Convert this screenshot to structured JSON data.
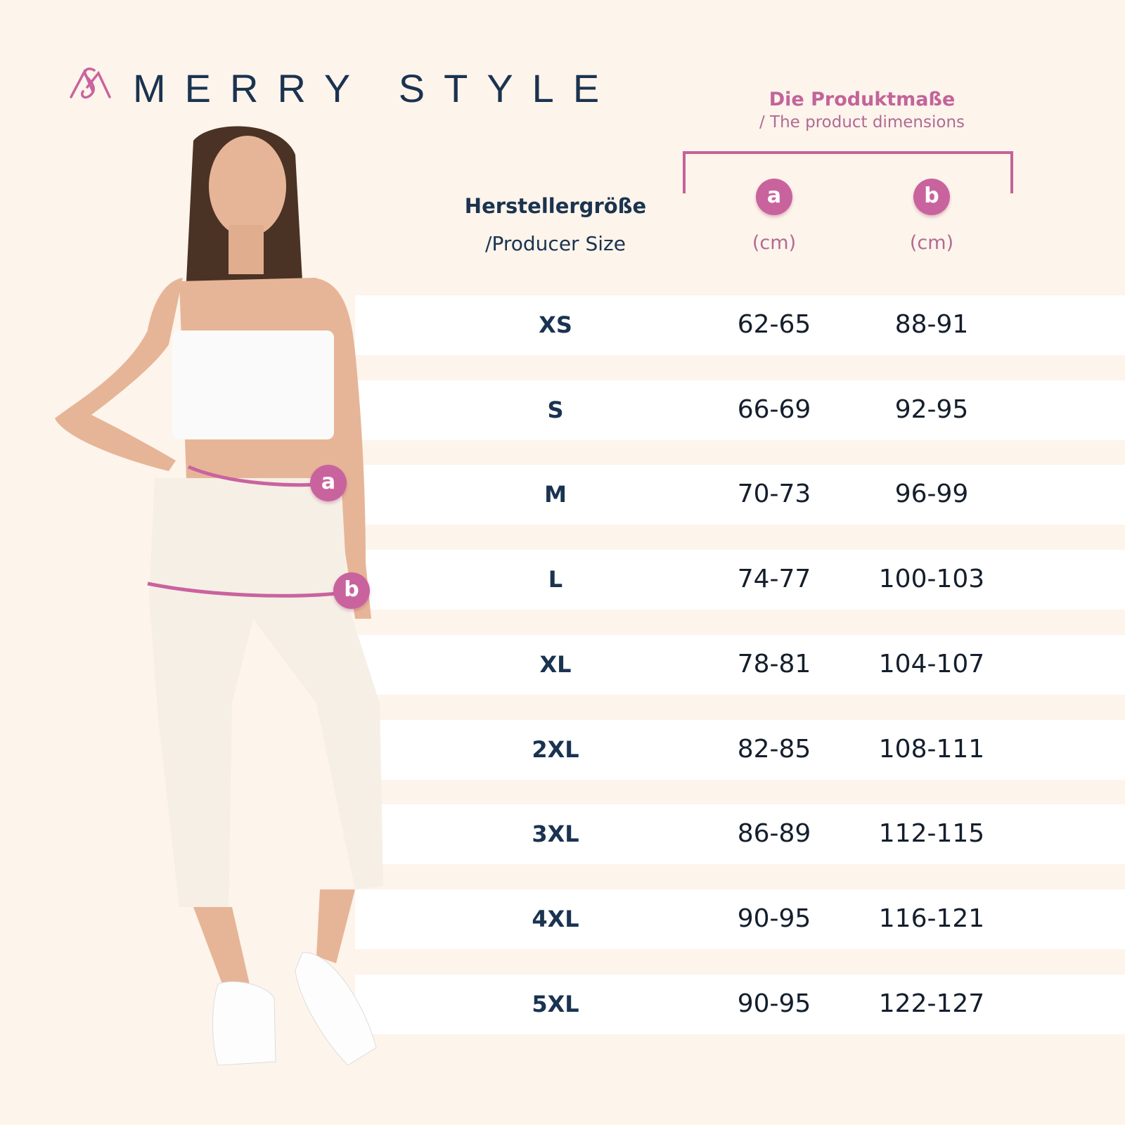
{
  "brand": {
    "name": "MERRY STYLE",
    "logo_icon": "ms-monogram-logo",
    "color": "#c9639e"
  },
  "header": {
    "size_title": "Herstellergröße",
    "size_subtitle": "/Producer Size",
    "dimensions_title": "Die Produktmaße",
    "dimensions_subtitle": "/ The product dimensions",
    "columns": [
      {
        "badge": "a",
        "unit": "(cm)"
      },
      {
        "badge": "b",
        "unit": "(cm)"
      }
    ]
  },
  "figure": {
    "markers": [
      "a",
      "b"
    ],
    "marker_color": "#c9639e"
  },
  "colors": {
    "background": "#fdf4eb",
    "row": "#ffffff",
    "accent": "#c9639e",
    "text": "#1a3350"
  },
  "rows": [
    {
      "size": "XS",
      "a": "62-65",
      "b": "88-91"
    },
    {
      "size": "S",
      "a": "66-69",
      "b": "92-95"
    },
    {
      "size": "M",
      "a": "70-73",
      "b": "96-99"
    },
    {
      "size": "L",
      "a": "74-77",
      "b": "100-103"
    },
    {
      "size": "XL",
      "a": "78-81",
      "b": "104-107"
    },
    {
      "size": "2XL",
      "a": "82-85",
      "b": "108-111"
    },
    {
      "size": "3XL",
      "a": "86-89",
      "b": "112-115"
    },
    {
      "size": "4XL",
      "a": "90-95",
      "b": "116-121"
    },
    {
      "size": "5XL",
      "a": "90-95",
      "b": "122-127"
    }
  ]
}
